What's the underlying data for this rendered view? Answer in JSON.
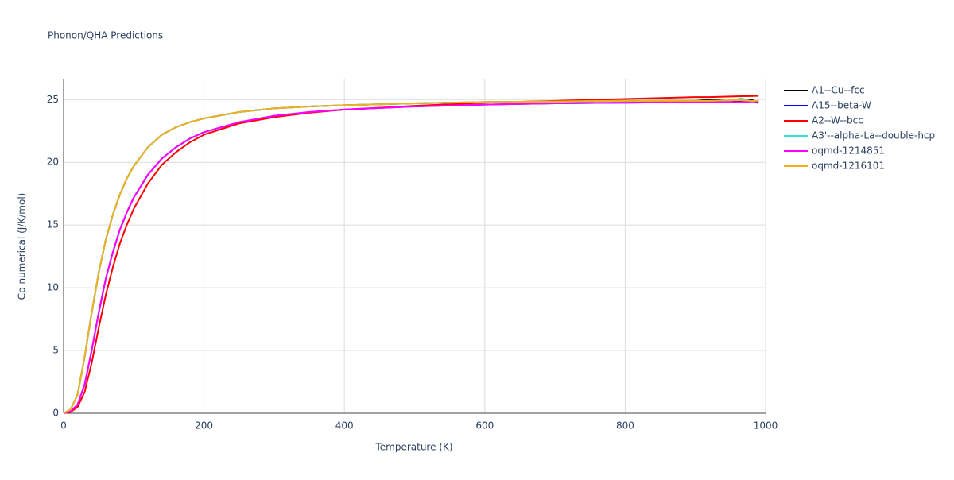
{
  "chart_data": {
    "type": "line",
    "title": "Phonon/QHA Predictions",
    "x_label": "Temperature (K)",
    "y_label": "Cp numerical (J/K/mol)",
    "x": [
      0,
      10,
      20,
      30,
      40,
      50,
      60,
      70,
      80,
      90,
      100,
      120,
      140,
      160,
      180,
      200,
      250,
      300,
      350,
      400,
      500,
      600,
      700,
      800,
      900,
      920,
      950,
      965,
      980,
      990
    ],
    "series": [
      {
        "name": "A1--Cu--fcc",
        "color": "#000000",
        "values": [
          0,
          0.3,
          1.5,
          4.5,
          8,
          11.2,
          13.8,
          15.8,
          17.4,
          18.7,
          19.7,
          21.2,
          22.2,
          22.8,
          23.2,
          23.5,
          24.0,
          24.3,
          24.45,
          24.55,
          24.7,
          24.8,
          24.85,
          24.9,
          24.9,
          25.0,
          24.9,
          24.9,
          25.0,
          24.7
        ]
      },
      {
        "name": "A15--beta-W",
        "color": "#0000ff",
        "values": [
          0,
          0.15,
          0.7,
          2.3,
          5,
          8,
          10.7,
          12.8,
          14.6,
          16,
          17.2,
          19,
          20.3,
          21.2,
          21.9,
          22.4,
          23.2,
          23.7,
          24.0,
          24.2,
          24.45,
          24.6,
          24.7,
          24.75,
          24.8,
          24.8,
          24.8,
          24.8,
          24.85,
          24.85
        ]
      },
      {
        "name": "A2--W--bcc",
        "color": "#ff0000",
        "values": [
          0,
          0.1,
          0.5,
          1.7,
          4,
          6.8,
          9.4,
          11.6,
          13.5,
          15,
          16.3,
          18.3,
          19.8,
          20.8,
          21.6,
          22.2,
          23.1,
          23.6,
          23.95,
          24.2,
          24.5,
          24.75,
          24.9,
          25.05,
          25.2,
          25.2,
          25.25,
          25.27,
          25.28,
          25.3
        ]
      },
      {
        "name": "A3'--alpha-La--double-hcp",
        "color": "#33e0e0",
        "values": [
          0,
          0.3,
          1.5,
          4.5,
          8,
          11.2,
          13.8,
          15.8,
          17.4,
          18.7,
          19.7,
          21.2,
          22.2,
          22.8,
          23.2,
          23.5,
          24.0,
          24.3,
          24.45,
          24.55,
          24.7,
          24.8,
          24.85,
          24.9,
          24.9,
          24.9,
          24.9,
          25.1,
          24.85,
          24.9
        ]
      },
      {
        "name": "oqmd-1214851",
        "color": "#ff00ff",
        "values": [
          0,
          0.15,
          0.7,
          2.3,
          5,
          8,
          10.7,
          12.8,
          14.6,
          16,
          17.2,
          19,
          20.3,
          21.2,
          21.9,
          22.4,
          23.2,
          23.7,
          24.0,
          24.2,
          24.45,
          24.6,
          24.7,
          24.75,
          24.8,
          24.8,
          24.8,
          24.8,
          24.85,
          24.85
        ]
      },
      {
        "name": "oqmd-1216101",
        "color": "#f0b020",
        "values": [
          0,
          0.3,
          1.5,
          4.5,
          8,
          11.2,
          13.8,
          15.8,
          17.4,
          18.7,
          19.7,
          21.2,
          22.2,
          22.8,
          23.2,
          23.5,
          24.0,
          24.3,
          24.45,
          24.55,
          24.7,
          24.8,
          24.85,
          24.9,
          24.9,
          24.9,
          24.95,
          24.95,
          24.9,
          24.9
        ]
      }
    ],
    "xlim": [
      0,
      1000
    ],
    "xticks": [
      0,
      200,
      400,
      600,
      800,
      1000
    ],
    "ylim": [
      0,
      26.6
    ],
    "yticks": [
      0,
      5,
      10,
      15,
      20,
      25
    ],
    "grid": true
  }
}
